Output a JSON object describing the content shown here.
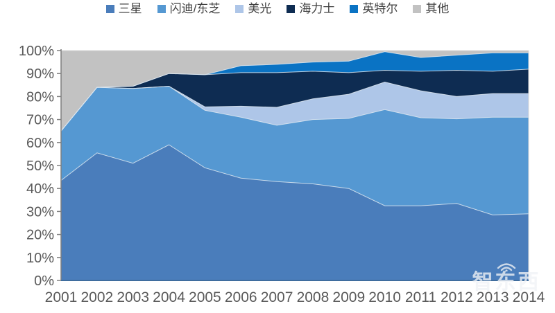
{
  "chart_data": {
    "type": "area",
    "stacked": true,
    "title": "",
    "xlabel": "",
    "ylabel": "",
    "categories": [
      "2001",
      "2002",
      "2003",
      "2004",
      "2005",
      "2006",
      "2007",
      "2008",
      "2009",
      "2010",
      "2011",
      "2012",
      "2013",
      "2014"
    ],
    "series": [
      {
        "name": "三星",
        "color": "#4a7dbb",
        "values": [
          43.5,
          55.5,
          51.0,
          59.0,
          49.0,
          44.5,
          43.0,
          42.0,
          40.0,
          32.5,
          32.5,
          33.5,
          28.5,
          29.0
        ]
      },
      {
        "name": "闪迪/东芝",
        "color": "#5598d2",
        "values": [
          21.5,
          28.5,
          32.5,
          25.5,
          25.0,
          26.5,
          24.5,
          28.0,
          30.5,
          41.8,
          38.3,
          36.8,
          42.5,
          42.0
        ]
      },
      {
        "name": "美光",
        "color": "#aec6e8",
        "values": [
          0.0,
          0.0,
          0.0,
          0.0,
          1.5,
          4.8,
          7.8,
          9.0,
          10.5,
          12.0,
          11.7,
          9.7,
          10.3,
          10.3
        ]
      },
      {
        "name": "海力士",
        "color": "#0e2c52",
        "values": [
          0.0,
          0.0,
          1.0,
          5.5,
          14.0,
          14.6,
          15.1,
          12.0,
          9.4,
          5.1,
          8.5,
          11.4,
          9.7,
          10.6
        ]
      },
      {
        "name": "英特尔",
        "color": "#0a73c4",
        "values": [
          0.0,
          0.0,
          0.0,
          0.0,
          0.0,
          3.0,
          3.6,
          4.0,
          5.0,
          8.1,
          6.0,
          6.6,
          8.0,
          7.1
        ]
      },
      {
        "name": "其他",
        "color": "#c2c2c2",
        "values": [
          35.0,
          16.0,
          15.5,
          10.0,
          10.5,
          6.6,
          6.0,
          5.0,
          4.6,
          0.5,
          3.0,
          2.0,
          1.0,
          1.0
        ]
      }
    ],
    "ylim": [
      0,
      100
    ],
    "y_tick_labels": [
      "0%",
      "10%",
      "20%",
      "30%",
      "40%",
      "50%",
      "60%",
      "70%",
      "80%",
      "90%",
      "100%"
    ],
    "legend_position": "top",
    "grid": false
  },
  "watermark": {
    "text": "智东西"
  },
  "style": {
    "axis_color": "#7f7f7f",
    "plot_border_color": "#d9d9d9",
    "baseline_color": "#3f6d9e",
    "label_color": "#595959",
    "seam_color": "#dce6f0"
  }
}
